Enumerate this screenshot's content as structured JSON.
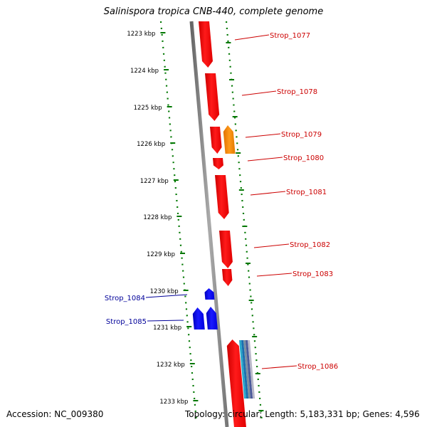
{
  "title": "Salinispora tropica CNB-440, complete genome",
  "footer": {
    "accession": "Accession: NC_009380",
    "topology": "Topology: circular; Length: 5,183,331 bp; Genes: 4,596"
  },
  "colors": {
    "forward_gene": "#ff0000",
    "reverse_gene": "#0000ff",
    "orange_feature": "#ff8800",
    "track_dots": "#007700",
    "backbone": "#888888",
    "forward_label": "#cc0000",
    "reverse_label": "#000099"
  },
  "scale_ticks": [
    "1223 kbp",
    "1224 kbp",
    "1225 kbp",
    "1226 kbp",
    "1227 kbp",
    "1228 kbp",
    "1229 kbp",
    "1230 kbp",
    "1231 kbp",
    "1232 kbp",
    "1233 kbp"
  ],
  "genes": [
    {
      "label": "Strop_1077",
      "strand": "forward"
    },
    {
      "label": "Strop_1078",
      "strand": "forward"
    },
    {
      "label": "Strop_1079",
      "strand": "forward"
    },
    {
      "label": "Strop_1080",
      "strand": "forward"
    },
    {
      "label": "Strop_1081",
      "strand": "forward"
    },
    {
      "label": "Strop_1082",
      "strand": "forward"
    },
    {
      "label": "Strop_1083",
      "strand": "forward"
    },
    {
      "label": "Strop_1084",
      "strand": "reverse"
    },
    {
      "label": "Strop_1085",
      "strand": "reverse"
    },
    {
      "label": "Strop_1086",
      "strand": "forward"
    }
  ]
}
